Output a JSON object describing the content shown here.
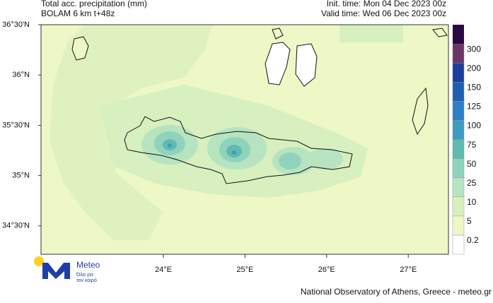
{
  "header": {
    "title": "Total acc. precipitation (mm)",
    "model": "BOLAM 6 km t+48z",
    "init_time": "Init. time: Mon 04 Dec 2023 00z",
    "valid_time": "Valid time: Wed 06 Dec 2023 00z"
  },
  "map": {
    "lat_labels": [
      "36°30'N",
      "36°N",
      "35°30'N",
      "35°N",
      "34°30'N"
    ],
    "lon_labels": [
      "24°E",
      "25°E",
      "26°E",
      "27°E"
    ]
  },
  "colorbar": {
    "levels": [
      {
        "value": 0.2,
        "color": "#ffffff"
      },
      {
        "value": 5,
        "color": "#eef7c6"
      },
      {
        "value": 10,
        "color": "#d8efbf"
      },
      {
        "value": 25,
        "color": "#b6e4c0"
      },
      {
        "value": 50,
        "color": "#8fd3bd"
      },
      {
        "value": 75,
        "color": "#5fbbb0"
      },
      {
        "value": 100,
        "color": "#3b9dc0"
      },
      {
        "value": 125,
        "color": "#2b7fc2"
      },
      {
        "value": 150,
        "color": "#1f5fb2"
      },
      {
        "value": 200,
        "color": "#1c3d9a"
      },
      {
        "value": 300,
        "color": "#6b3565"
      }
    ],
    "top_color": "#2b0a42"
  },
  "logo": {
    "name": "Meteo",
    "tagline_1": "Όλα για",
    "tagline_2": "τον καιρό"
  },
  "footer": "National Observatory of Athens, Greece - meteo.gr"
}
